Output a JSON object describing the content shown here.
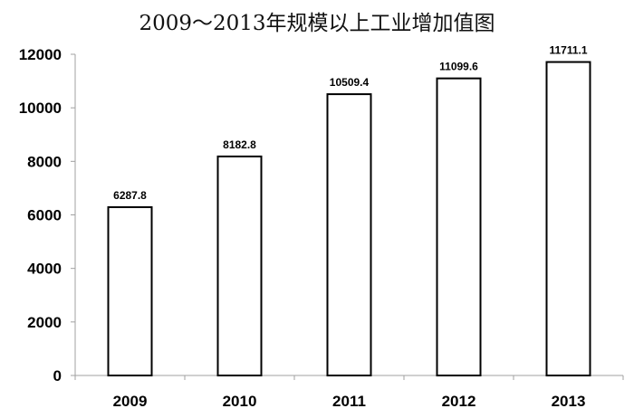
{
  "chart_data": {
    "type": "bar",
    "title": "2009～2013年规模以上工业增加值图",
    "categories": [
      "2009",
      "2010",
      "2011",
      "2012",
      "2013"
    ],
    "values": [
      6287.8,
      8182.8,
      10509.4,
      11099.6,
      11711.1
    ],
    "data_labels": [
      "6287.8",
      "8182.8",
      "10509.4",
      "11099.6",
      "11711.1"
    ],
    "ylim": [
      0,
      12000
    ],
    "yticks": [
      "0",
      "2000",
      "4000",
      "6000",
      "8000",
      "10000",
      "12000"
    ],
    "grid": false,
    "legend": "none",
    "colors": {
      "bar_fill": "#ffffff",
      "bar_stroke": "#000000",
      "axis": "#a0a0a0"
    }
  }
}
